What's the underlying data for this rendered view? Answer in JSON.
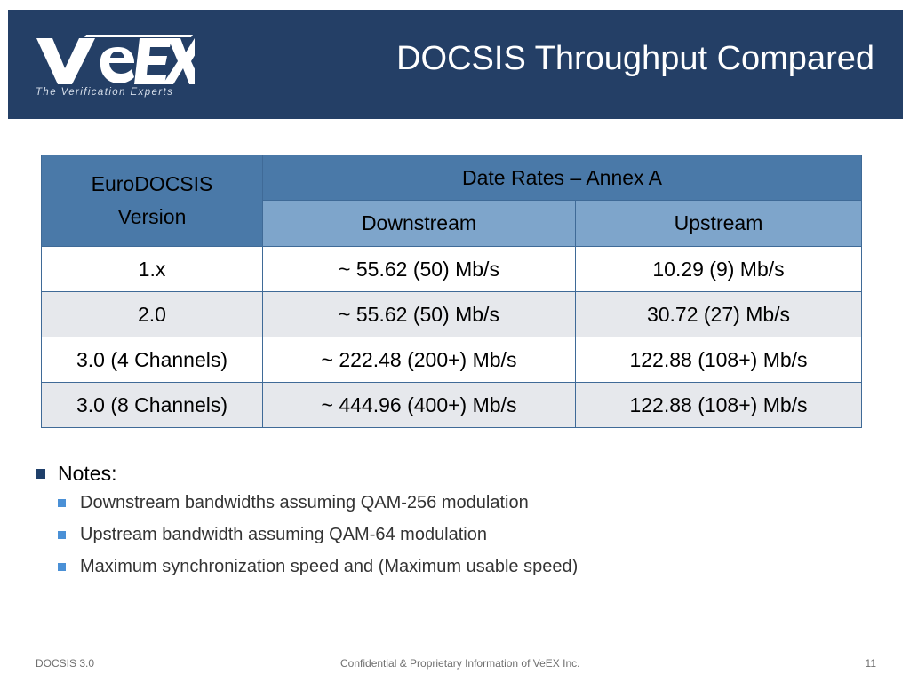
{
  "header": {
    "logo_text": "VeEX",
    "tagline": "The Verification Experts",
    "title": "DOCSIS Throughput Compared"
  },
  "table": {
    "corner_header_line1": "EuroDOCSIS",
    "corner_header_line2": "Version",
    "group_header": "Date Rates – Annex A",
    "columns": [
      "Downstream",
      "Upstream"
    ],
    "rows": [
      {
        "version": "1.x",
        "downstream": "~ 55.62 (50) Mb/s",
        "upstream": "10.29 (9) Mb/s"
      },
      {
        "version": "2.0",
        "downstream": "~ 55.62 (50) Mb/s",
        "upstream": "30.72 (27) Mb/s"
      },
      {
        "version": "3.0 (4 Channels)",
        "downstream": "~ 222.48 (200+) Mb/s",
        "upstream": "122.88 (108+) Mb/s"
      },
      {
        "version": "3.0 (8 Channels)",
        "downstream": "~ 444.96 (400+) Mb/s",
        "upstream": "122.88 (108+) Mb/s"
      }
    ]
  },
  "notes": {
    "heading": "Notes:",
    "items": [
      "Downstream bandwidths assuming QAM-256 modulation",
      "Upstream bandwidth assuming QAM-64 modulation",
      "Maximum synchronization speed and (Maximum usable speed)"
    ]
  },
  "footer": {
    "left": "DOCSIS 3.0",
    "center": "Confidential & Proprietary Information of VeEX Inc.",
    "page_number": "11"
  },
  "colors": {
    "header_bg": "#243f66",
    "table_header_bg": "#4a79a8",
    "table_subheader_bg": "#7ea5cb",
    "row_alt_bg": "#e6e8ec",
    "bullet_dark": "#1f3f6a",
    "bullet_light": "#4a90d6"
  }
}
